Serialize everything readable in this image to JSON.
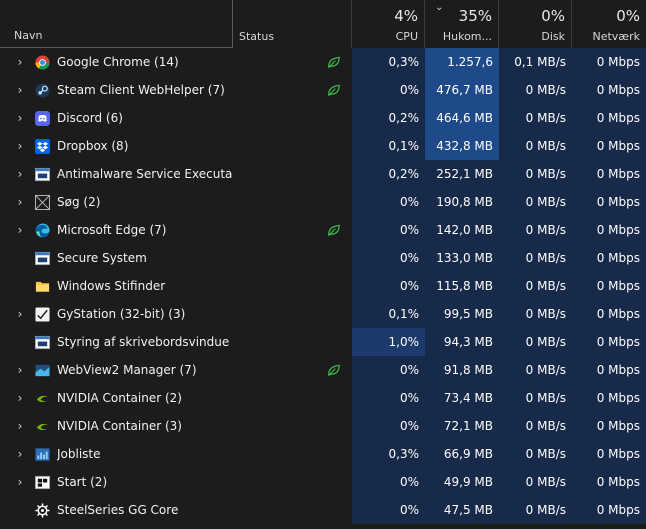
{
  "header": {
    "name_label": "Navn",
    "status_label": "Status",
    "cpu": {
      "pct": "4%",
      "label": "CPU"
    },
    "memory": {
      "pct": "35%",
      "label": "Hukom..."
    },
    "disk": {
      "pct": "0%",
      "label": "Disk"
    },
    "network": {
      "pct": "0%",
      "label": "Netværk"
    }
  },
  "colors": {
    "accent_high": "#1e4a8a",
    "accent_mid": "#1c3a6b",
    "accent_low": "#172a4a",
    "eco_leaf": "#3fb950"
  },
  "processes": [
    {
      "name": "Google Chrome (14)",
      "icon": "chrome-icon",
      "expandable": true,
      "eco": true,
      "cpu": "0,3%",
      "memory": "1.257,6 MB",
      "disk": "0,1 MB/s",
      "network": "0 Mbps"
    },
    {
      "name": "Steam Client WebHelper (7)",
      "icon": "steam-icon",
      "expandable": true,
      "eco": true,
      "cpu": "0%",
      "memory": "476,7 MB",
      "disk": "0 MB/s",
      "network": "0 Mbps"
    },
    {
      "name": "Discord (6)",
      "icon": "discord-icon",
      "expandable": true,
      "eco": false,
      "cpu": "0,2%",
      "memory": "464,6 MB",
      "disk": "0 MB/s",
      "network": "0 Mbps"
    },
    {
      "name": "Dropbox (8)",
      "icon": "dropbox-icon",
      "expandable": true,
      "eco": false,
      "cpu": "0,1%",
      "memory": "432,8 MB",
      "disk": "0 MB/s",
      "network": "0 Mbps"
    },
    {
      "name": "Antimalware Service Executable",
      "icon": "window-app-icon",
      "expandable": true,
      "eco": false,
      "cpu": "0,2%",
      "memory": "252,1 MB",
      "disk": "0 MB/s",
      "network": "0 Mbps"
    },
    {
      "name": "Søg (2)",
      "icon": "search-app-icon",
      "expandable": true,
      "eco": false,
      "cpu": "0%",
      "memory": "190,8 MB",
      "disk": "0 MB/s",
      "network": "0 Mbps"
    },
    {
      "name": "Microsoft Edge (7)",
      "icon": "edge-icon",
      "expandable": true,
      "eco": true,
      "cpu": "0%",
      "memory": "142,0 MB",
      "disk": "0 MB/s",
      "network": "0 Mbps"
    },
    {
      "name": "Secure System",
      "icon": "window-app-icon",
      "expandable": false,
      "eco": false,
      "cpu": "0%",
      "memory": "133,0 MB",
      "disk": "0 MB/s",
      "network": "0 Mbps"
    },
    {
      "name": "Windows Stifinder",
      "icon": "folder-icon",
      "expandable": false,
      "eco": false,
      "cpu": "0%",
      "memory": "115,8 MB",
      "disk": "0 MB/s",
      "network": "0 Mbps"
    },
    {
      "name": "GyStation (32-bit) (3)",
      "icon": "gystation-icon",
      "expandable": true,
      "eco": false,
      "cpu": "0,1%",
      "memory": "99,5 MB",
      "disk": "0 MB/s",
      "network": "0 Mbps"
    },
    {
      "name": "Styring af skrivebordsvindue",
      "icon": "window-app-icon",
      "expandable": false,
      "eco": false,
      "cpu": "1,0%",
      "memory": "94,3 MB",
      "disk": "0 MB/s",
      "network": "0 Mbps"
    },
    {
      "name": "WebView2 Manager (7)",
      "icon": "webview-icon",
      "expandable": true,
      "eco": true,
      "cpu": "0%",
      "memory": "91,8 MB",
      "disk": "0 MB/s",
      "network": "0 Mbps"
    },
    {
      "name": "NVIDIA Container (2)",
      "icon": "nvidia-icon",
      "expandable": true,
      "eco": false,
      "cpu": "0%",
      "memory": "73,4 MB",
      "disk": "0 MB/s",
      "network": "0 Mbps"
    },
    {
      "name": "NVIDIA Container (3)",
      "icon": "nvidia-icon",
      "expandable": true,
      "eco": false,
      "cpu": "0%",
      "memory": "72,1 MB",
      "disk": "0 MB/s",
      "network": "0 Mbps"
    },
    {
      "name": "Jobliste",
      "icon": "task-scheduler-icon",
      "expandable": true,
      "eco": false,
      "cpu": "0,3%",
      "memory": "66,9 MB",
      "disk": "0 MB/s",
      "network": "0 Mbps"
    },
    {
      "name": "Start (2)",
      "icon": "start-icon",
      "expandable": true,
      "eco": false,
      "cpu": "0%",
      "memory": "49,9 MB",
      "disk": "0 MB/s",
      "network": "0 Mbps"
    },
    {
      "name": "SteelSeries GG Core",
      "icon": "steelseries-icon",
      "expandable": false,
      "eco": false,
      "cpu": "0%",
      "memory": "47,5 MB",
      "disk": "0 MB/s",
      "network": "0 Mbps"
    }
  ]
}
